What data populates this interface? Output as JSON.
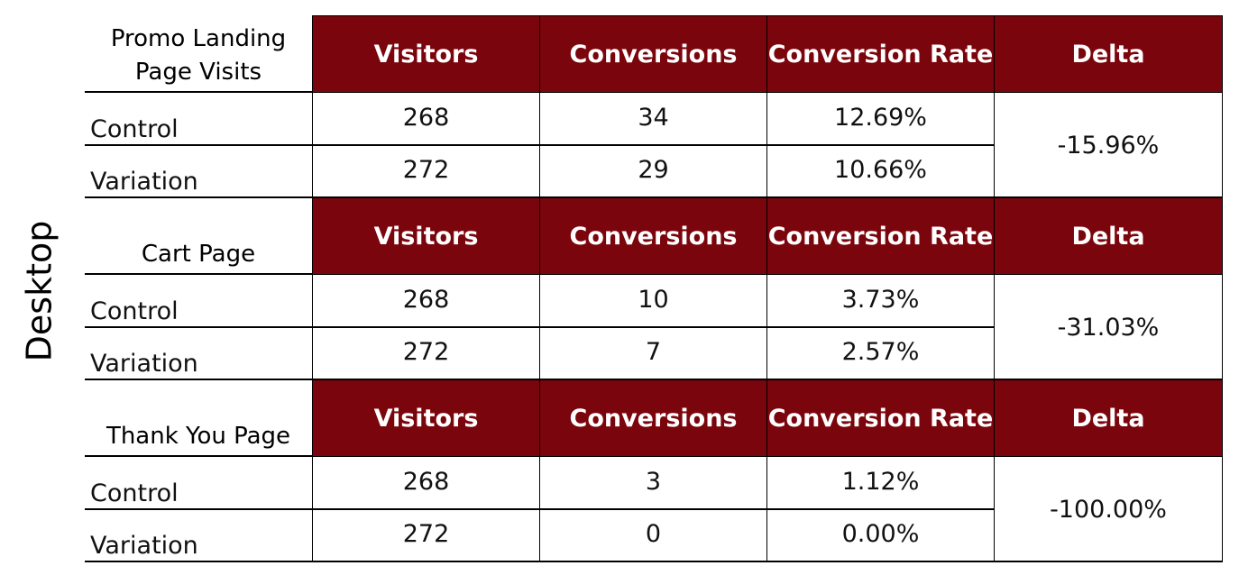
{
  "side_label": "Desktop",
  "columns": [
    "Visitors",
    "Conversions",
    "Conversion Rate",
    "Delta"
  ],
  "sections": [
    {
      "title_lines": [
        "Promo Landing",
        "Page Visits"
      ],
      "rows": [
        {
          "label": "Control",
          "visitors": "268",
          "conversions": "34",
          "rate": "12.69%"
        },
        {
          "label": "Variation",
          "visitors": "272",
          "conversions": "29",
          "rate": "10.66%"
        }
      ],
      "delta": "-15.96%"
    },
    {
      "title_lines": [
        "Cart Page"
      ],
      "rows": [
        {
          "label": "Control",
          "visitors": "268",
          "conversions": "10",
          "rate": "3.73%"
        },
        {
          "label": "Variation",
          "visitors": "272",
          "conversions": "7",
          "rate": "2.57%"
        }
      ],
      "delta": "-31.03%"
    },
    {
      "title_lines": [
        "Thank You Page"
      ],
      "rows": [
        {
          "label": "Control",
          "visitors": "268",
          "conversions": "3",
          "rate": "1.12%"
        },
        {
          "label": "Variation",
          "visitors": "272",
          "conversions": "0",
          "rate": "0.00%"
        }
      ],
      "delta": "-100.00%"
    }
  ]
}
